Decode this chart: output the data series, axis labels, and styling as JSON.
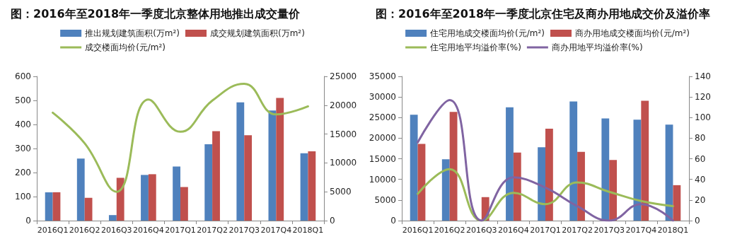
{
  "chart_data": [
    {
      "type": "bar",
      "title": "图：2016年至2018年一季度北京整体用地推出成交量价",
      "categories": [
        "2016Q1",
        "2016Q2",
        "2016Q3",
        "2016Q4",
        "2017Q1",
        "2017Q2",
        "2017Q3",
        "2017Q4",
        "2018Q1"
      ],
      "series": [
        {
          "name": "推出规划建筑面积(万m²)",
          "color": "#4f81bd",
          "values": [
            118,
            258,
            23,
            190,
            225,
            318,
            492,
            458,
            280
          ]
        },
        {
          "name": "成交规划建筑面积(万m²)",
          "color": "#c0504d",
          "values": [
            118,
            95,
            178,
            193,
            140,
            372,
            355,
            510,
            288
          ]
        },
        {
          "name": "成交楼面均价(元/m²)",
          "type": "line",
          "axis": "y2",
          "color": "#9bbb59",
          "values": [
            18700,
            13400,
            5000,
            21000,
            15400,
            20800,
            23700,
            18400,
            19800
          ]
        }
      ],
      "ylim": [
        0,
        600
      ],
      "yticks": [
        0,
        100,
        200,
        300,
        400,
        500,
        600
      ],
      "y2lim": [
        0,
        25000
      ],
      "y2ticks": [
        0,
        5000,
        10000,
        15000,
        20000,
        25000
      ],
      "grid": false,
      "legend": "top",
      "marker": "none"
    },
    {
      "type": "bar",
      "title": "图：2016年至2018年一季度北京住宅及商办用地成交价及溢价率",
      "categories": [
        "2016Q1",
        "2016Q2",
        "2016Q3",
        "2016Q4",
        "2017Q1",
        "2017Q2",
        "2017Q3",
        "2017Q4",
        "2018Q1"
      ],
      "series": [
        {
          "name": "住宅用地成交楼面均价(元/m²)",
          "color": "#4f81bd",
          "values": [
            25700,
            14900,
            0,
            27500,
            17800,
            28900,
            24800,
            24500,
            23300
          ]
        },
        {
          "name": "商办用地成交楼面均价(元/m²)",
          "color": "#c0504d",
          "values": [
            18600,
            26400,
            5700,
            16500,
            22300,
            16700,
            14700,
            29100,
            8600
          ]
        },
        {
          "name": "住宅用地平均溢价率(%)",
          "type": "line",
          "axis": "y2",
          "color": "#9bbb59",
          "values": [
            26,
            50,
            0,
            27,
            16,
            37,
            28,
            19,
            14
          ]
        },
        {
          "name": "商办用地平均溢价率(%)",
          "type": "line",
          "axis": "y2",
          "color": "#8064a2",
          "values": [
            76,
            117,
            0,
            42,
            32,
            14,
            0,
            16,
            0
          ]
        }
      ],
      "ylim": [
        0,
        35000
      ],
      "yticks": [
        0,
        5000,
        10000,
        15000,
        20000,
        25000,
        30000,
        35000
      ],
      "y2lim": [
        0,
        140
      ],
      "y2ticks": [
        0,
        20,
        40,
        60,
        80,
        100,
        120,
        140
      ],
      "grid": false,
      "legend": "top",
      "marker": "none"
    }
  ]
}
